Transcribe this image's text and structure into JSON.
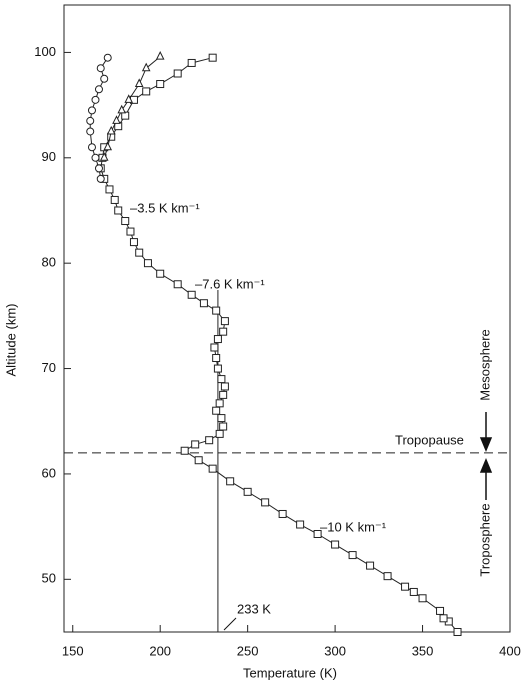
{
  "chart_data": {
    "type": "scatter-line",
    "x_label": "Temperature (K)",
    "y_label": "Altitude (km)",
    "xlim": [
      145,
      400
    ],
    "ylim": [
      45,
      104.5
    ],
    "xticks": [
      150,
      200,
      250,
      300,
      350,
      400
    ],
    "yticks": [
      50,
      60,
      70,
      80,
      90,
      100
    ],
    "series": [
      {
        "marker": "square",
        "color": "#222222",
        "x": [
          370,
          365,
          362,
          360,
          350,
          345,
          340,
          330,
          320,
          310,
          300,
          290,
          280,
          270,
          260,
          250,
          240,
          230,
          222,
          214,
          220,
          228,
          234,
          236,
          235,
          232,
          234,
          236,
          237,
          235,
          233,
          232,
          231,
          233,
          236,
          237,
          232,
          225,
          218,
          210,
          200,
          193,
          188,
          185,
          183,
          180,
          176,
          174,
          171,
          168,
          166,
          167,
          168,
          172,
          176,
          180,
          185,
          192,
          200,
          210,
          218,
          230
        ],
        "values": [
          45,
          46,
          46.3,
          47,
          48.2,
          48.8,
          49.3,
          50.3,
          51.3,
          52.3,
          53.3,
          54.3,
          55.2,
          56.2,
          57.3,
          58.3,
          59.3,
          60.5,
          61.3,
          62.2,
          62.8,
          63.2,
          63.8,
          64.5,
          65.3,
          66,
          66.7,
          67.5,
          68.3,
          69,
          70,
          71,
          72,
          72.8,
          73.5,
          74.5,
          75.5,
          76.2,
          77,
          78,
          79,
          80,
          81,
          82,
          83,
          84,
          85,
          86,
          87,
          88,
          89,
          90,
          91,
          92,
          93,
          94,
          95.5,
          96.3,
          97,
          98,
          99,
          99.5
        ]
      },
      {
        "marker": "triangle",
        "color": "#222222",
        "x": [
          168,
          170,
          172,
          175,
          178,
          182,
          188,
          192,
          200
        ],
        "values": [
          90,
          91,
          92.5,
          93.5,
          94.5,
          95.5,
          97,
          98.5,
          99.6
        ]
      },
      {
        "marker": "circle",
        "color": "#222222",
        "x": [
          166,
          165,
          163,
          161,
          160,
          160,
          161,
          163,
          165,
          168,
          166,
          170
        ],
        "values": [
          88,
          89,
          90,
          91,
          92.5,
          93.5,
          94.5,
          95.5,
          96.5,
          97.5,
          98.5,
          99.5
        ]
      }
    ],
    "vline": {
      "value": 233,
      "label": "233  K"
    },
    "hline": 62,
    "annotations": [
      "–3.5 K km⁻¹",
      "–7.6 K km⁻¹",
      "–10 K km⁻¹",
      "Tropopause",
      "Mesosphere",
      "Troposphere"
    ]
  }
}
